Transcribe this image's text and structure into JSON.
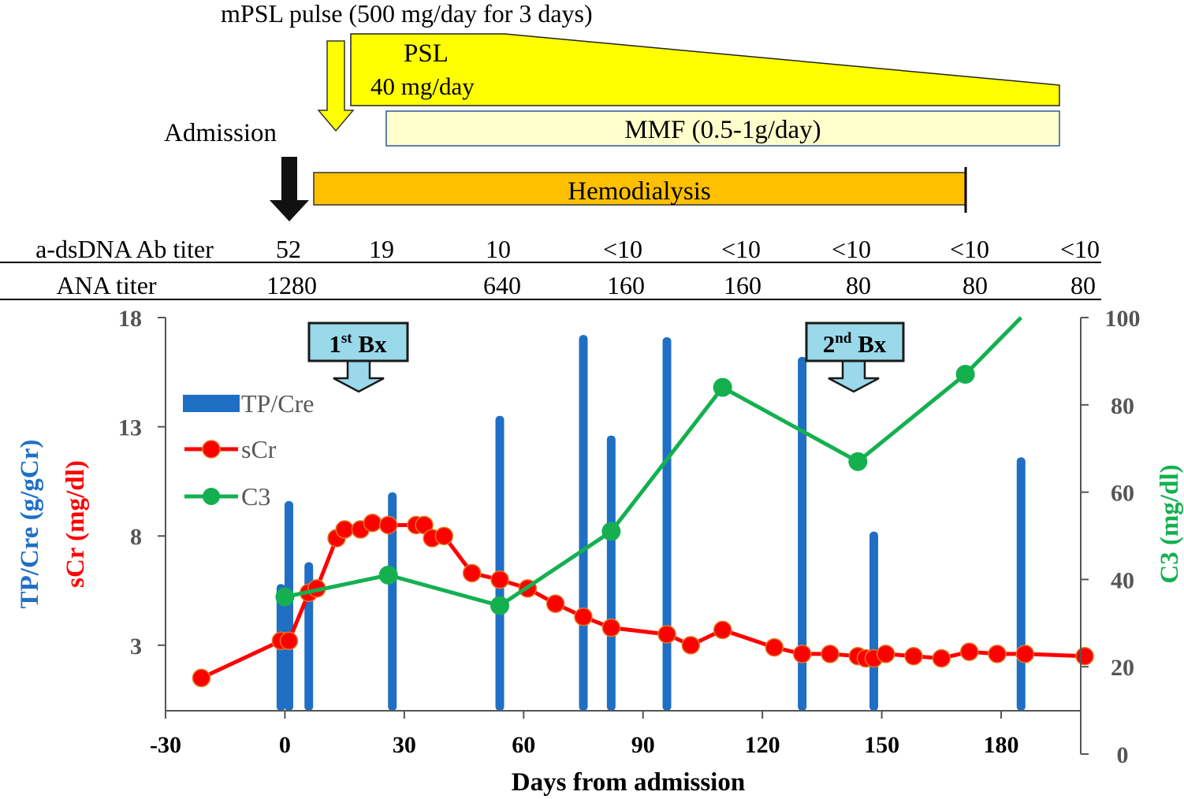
{
  "treatments": {
    "mpsl_label": "mPSL pulse (500 mg/day for 3 days)",
    "psl_label": "PSL",
    "psl_dose": "40 mg/day",
    "mmf_label": "MMF (0.5-1g/day)",
    "admission_label": "Admission",
    "hemodialysis_label": "Hemodialysis"
  },
  "titers": {
    "dsdna_label": "a-dsDNA Ab titer",
    "dsdna_values": [
      "52",
      "19",
      "10",
      "<10",
      "<10",
      "<10",
      "<10",
      "<10"
    ],
    "ana_label": "ANA titer",
    "ana_values": [
      "1280",
      "640",
      "160",
      "160",
      "80",
      "80",
      "80"
    ]
  },
  "biopsies": {
    "first_num": "1",
    "first_sup": "st",
    "first_rest": " Bx",
    "second_num": "2",
    "second_sup": "nd",
    "second_rest": " Bx"
  },
  "colors": {
    "tpcre": "#1f6fc5",
    "scr": "#ff0000",
    "scr_marker_edge": "#e07a20",
    "c3": "#14b050",
    "psl": "#ffff00",
    "mmf": "#ffffcc",
    "mmf_border": "#2f5597",
    "hemodialysis": "#ffc000",
    "bx_box": "#99d9ea",
    "arrow_yellow": "#ffff00",
    "arrow_black": "#111111",
    "axis": "#555555"
  },
  "chart_data": {
    "type": "bar+line",
    "xlabel": "Days from admission",
    "xlim": [
      -30,
      200
    ],
    "xticks": [
      -30,
      0,
      30,
      60,
      90,
      120,
      150,
      180
    ],
    "y_left": {
      "label_top": "TP/Cre (g/gCr)",
      "label_bottom": "sCr (mg/dl)",
      "lim": [
        0,
        18
      ],
      "ticks": [
        3,
        8,
        13,
        18
      ]
    },
    "y_right": {
      "label": "C3 (mg/dl)",
      "lim": [
        0,
        100
      ],
      "ticks": [
        0,
        20,
        40,
        60,
        80,
        100
      ]
    },
    "legend": [
      "TP/Cre",
      "sCr",
      "C3"
    ],
    "legend_position": "upper-left",
    "series": [
      {
        "name": "TP/Cre",
        "kind": "bar",
        "axis": "left",
        "x": [
          -1,
          1,
          6,
          27,
          54,
          75,
          82,
          96,
          130,
          148,
          185
        ],
        "values": [
          5.8,
          9.6,
          6.8,
          10.0,
          13.5,
          17.2,
          12.6,
          17.1,
          16.2,
          8.2,
          11.6
        ]
      },
      {
        "name": "sCr",
        "kind": "line",
        "axis": "left",
        "x": [
          -21,
          -1,
          1,
          6,
          8,
          13,
          15,
          19,
          22,
          26,
          33,
          35,
          37,
          40,
          47,
          54,
          61,
          68,
          75,
          82,
          96,
          102,
          110,
          123,
          130,
          137,
          144,
          146,
          148,
          151,
          158,
          165,
          172,
          179,
          186,
          201
        ],
        "values": [
          1.5,
          3.2,
          3.2,
          5.4,
          5.6,
          7.9,
          8.3,
          8.3,
          8.6,
          8.5,
          8.5,
          8.5,
          7.9,
          8.0,
          6.3,
          6.0,
          5.6,
          4.9,
          4.3,
          3.8,
          3.5,
          3.0,
          3.7,
          2.9,
          2.6,
          2.6,
          2.5,
          2.4,
          2.4,
          2.6,
          2.5,
          2.4,
          2.7,
          2.6,
          2.6,
          2.5
        ]
      },
      {
        "name": "C3",
        "kind": "line",
        "axis": "right",
        "x": [
          0,
          26,
          54,
          82,
          110,
          144,
          171,
          185
        ],
        "values": [
          36,
          41,
          34,
          51,
          84,
          67,
          87,
          100
        ]
      }
    ],
    "annotations": [
      {
        "label": "1st Bx",
        "x": 16
      },
      {
        "label": "2nd Bx",
        "x": 144
      }
    ]
  }
}
